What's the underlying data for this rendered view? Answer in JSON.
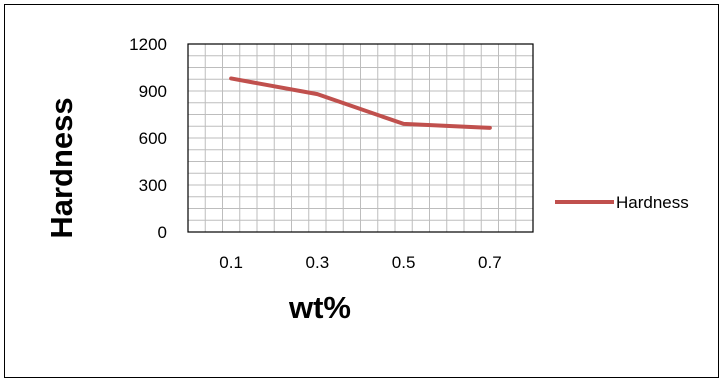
{
  "chart_data": {
    "type": "line",
    "title": "",
    "xlabel": "wt%",
    "ylabel": "Hardness",
    "categories": [
      "0.1",
      "0.3",
      "0.5",
      "0.7"
    ],
    "yticks": [
      "0",
      "300",
      "600",
      "900",
      "1200"
    ],
    "ylim": [
      0,
      1200
    ],
    "grid": true,
    "legend_position": "right",
    "series": [
      {
        "name": "Hardness",
        "values": [
          980,
          880,
          690,
          665
        ],
        "color": "#c0504d"
      }
    ]
  }
}
